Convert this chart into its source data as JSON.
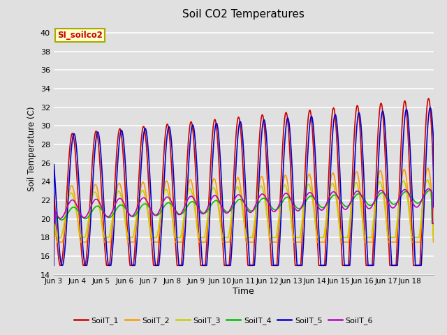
{
  "title": "Soil CO2 Temperatures",
  "xlabel": "Time",
  "ylabel": "Soil Temperature (C)",
  "ylim": [
    14,
    41
  ],
  "yticks": [
    14,
    16,
    18,
    20,
    22,
    24,
    26,
    28,
    30,
    32,
    34,
    36,
    38,
    40
  ],
  "annotation": "SI_soilco2",
  "annotation_color": "#cc0000",
  "annotation_bg": "#ffffcc",
  "annotation_border": "#aaaa00",
  "bg_color": "#e0e0e0",
  "series": [
    "SoilT_1",
    "SoilT_2",
    "SoilT_3",
    "SoilT_4",
    "SoilT_5",
    "SoilT_6"
  ],
  "colors": [
    "#cc0000",
    "#ff9900",
    "#cccc00",
    "#00bb00",
    "#0000cc",
    "#bb00bb"
  ],
  "xtick_labels": [
    "Jun 3",
    "Jun 4",
    "Jun 5",
    "Jun 6",
    "Jun 7",
    "Jun 8",
    "Jun 9",
    "Jun 10",
    "Jun 11",
    "Jun 12",
    "Jun 13",
    "Jun 14",
    "Jun 15",
    "Jun 16",
    "Jun 17",
    "Jun 18"
  ],
  "n_days": 16,
  "pts_per_day": 144
}
